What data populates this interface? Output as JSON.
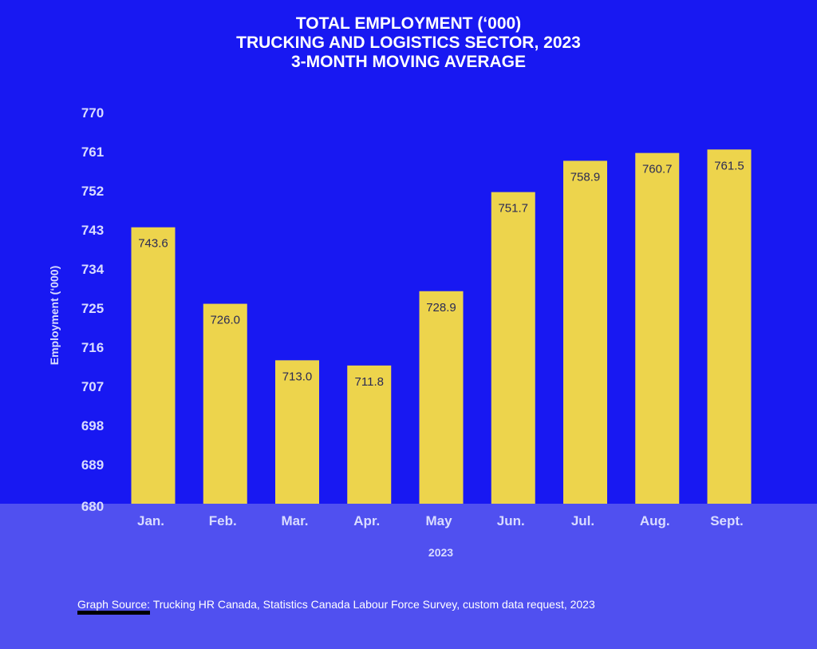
{
  "colors": {
    "background_top": "#1818F2",
    "background_bottom": "#5050F0",
    "bar": "#EDD44C",
    "bar_label": "#2a2a55",
    "tick_label": "#d9dcff"
  },
  "chart_data": {
    "type": "bar",
    "title": [
      "TOTAL EMPLOYMENT (‘000)",
      "TRUCKING AND LOGISTICS SECTOR, 2023",
      "3-MONTH MOVING AVERAGE"
    ],
    "xlabel": "2023",
    "ylabel": "Employment (‘000)",
    "categories": [
      "Jan.",
      "Feb.",
      "Mar.",
      "Apr.",
      "May",
      "Jun.",
      "Jul.",
      "Aug.",
      "Sept."
    ],
    "values": [
      743.6,
      726.0,
      713.0,
      711.8,
      728.9,
      751.7,
      758.9,
      760.7,
      761.5
    ],
    "value_labels": [
      "743.6",
      "726.0",
      "713.0",
      "711.8",
      "728.9",
      "751.7",
      "758.9",
      "760.7",
      "761.5"
    ],
    "ylim": [
      680,
      770
    ],
    "yticks": [
      680,
      689,
      698,
      707,
      716,
      725,
      734,
      743,
      752,
      761,
      770
    ],
    "grid": false,
    "legend": "none"
  },
  "source": {
    "prefix": "Graph Source:",
    "text": " Trucking HR Canada, Statistics Canada Labour Force Survey, custom data request, 2023"
  }
}
